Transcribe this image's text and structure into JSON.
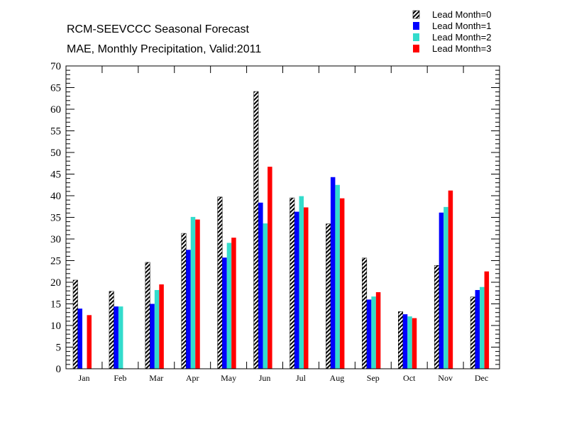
{
  "chart_data": {
    "type": "bar",
    "title": "RCM-SEEVCCC Seasonal Forecast",
    "subtitle": "MAE, Monthly Precipitation, Valid:2011",
    "xlabel": "",
    "ylabel": "",
    "ylim": [
      0,
      70
    ],
    "ytick_step": 5,
    "legend_position": "top-right",
    "categories": [
      "Jan",
      "Feb",
      "Mar",
      "Apr",
      "May",
      "Jun",
      "Jul",
      "Aug",
      "Sep",
      "Oct",
      "Nov",
      "Dec"
    ],
    "series": [
      {
        "name": "Lead Month=0",
        "color": "#000000",
        "pattern": "hatched",
        "values": [
          20.5,
          17.9,
          24.6,
          31.3,
          39.7,
          64.1,
          39.5,
          33.5,
          25.6,
          13.2,
          23.9,
          16.6
        ]
      },
      {
        "name": "Lead Month=1",
        "color": "#0000ff",
        "pattern": "solid",
        "values": [
          13.9,
          14.4,
          15.0,
          27.5,
          25.7,
          38.4,
          36.3,
          44.3,
          16.0,
          12.6,
          36.1,
          18.2
        ]
      },
      {
        "name": "Lead Month=2",
        "color": "#33dccc",
        "pattern": "solid",
        "values": [
          null,
          14.4,
          18.2,
          35.1,
          29.1,
          33.6,
          39.9,
          42.5,
          16.7,
          12.1,
          37.4,
          18.9
        ]
      },
      {
        "name": "Lead Month=3",
        "color": "#ff0000",
        "pattern": "solid",
        "values": [
          12.4,
          null,
          19.5,
          34.5,
          30.3,
          46.7,
          37.3,
          39.4,
          17.7,
          11.7,
          41.2,
          22.5
        ]
      }
    ]
  }
}
